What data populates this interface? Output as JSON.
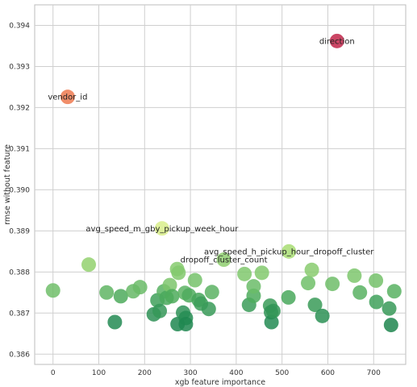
{
  "chart_data": {
    "type": "scatter",
    "title": "",
    "xlabel": "xgb feature importance",
    "ylabel": "rmse without feature",
    "xlim": [
      -40,
      770
    ],
    "ylim": [
      0.38575,
      0.3945
    ],
    "xticks": [
      0,
      100,
      200,
      300,
      400,
      500,
      600,
      700
    ],
    "yticks": [
      0.386,
      0.387,
      0.388,
      0.389,
      0.39,
      0.391,
      0.392,
      0.393,
      0.394
    ],
    "ytick_labels": [
      "0.386",
      "0.387",
      "0.388",
      "0.389",
      "0.390",
      "0.391",
      "0.392",
      "0.393",
      "0.394"
    ],
    "grid": true,
    "colormap": "RdYlGn (reversed: high rmse red, low rmse green)",
    "points": [
      {
        "x": 620,
        "y": 0.39362,
        "color": "#c2264a",
        "label": "direction"
      },
      {
        "x": 32,
        "y": 0.39226,
        "color": "#ef7a50",
        "label": "vendor_id"
      },
      {
        "x": 238,
        "y": 0.38906,
        "color": "#d9ef8b",
        "label": "avg_speed_m_gby_pickup_week_hour"
      },
      {
        "x": 515,
        "y": 0.3885,
        "color": "#a8dd73",
        "label": "avg_speed_h_pickup_hour_dropoff_cluster"
      },
      {
        "x": 373,
        "y": 0.3883,
        "color": "#8fcf70",
        "label": "dropoff_cluster_count"
      },
      {
        "x": 0,
        "y": 0.38755,
        "color": "#70be6a"
      },
      {
        "x": 78,
        "y": 0.38818,
        "color": "#93d16e"
      },
      {
        "x": 117,
        "y": 0.3875,
        "color": "#60b564"
      },
      {
        "x": 135,
        "y": 0.38678,
        "color": "#238b53"
      },
      {
        "x": 148,
        "y": 0.38741,
        "color": "#4eaa5c"
      },
      {
        "x": 175,
        "y": 0.38753,
        "color": "#66b866"
      },
      {
        "x": 190,
        "y": 0.38763,
        "color": "#6abb67"
      },
      {
        "x": 220,
        "y": 0.38697,
        "color": "#2e9156"
      },
      {
        "x": 228,
        "y": 0.38731,
        "color": "#3fa05a"
      },
      {
        "x": 233,
        "y": 0.38705,
        "color": "#359858"
      },
      {
        "x": 242,
        "y": 0.38753,
        "color": "#58b162"
      },
      {
        "x": 248,
        "y": 0.38737,
        "color": "#4aa95d"
      },
      {
        "x": 255,
        "y": 0.38768,
        "color": "#7cc56c"
      },
      {
        "x": 260,
        "y": 0.38741,
        "color": "#4dab5c"
      },
      {
        "x": 271,
        "y": 0.38807,
        "color": "#86cb6e"
      },
      {
        "x": 274,
        "y": 0.38798,
        "color": "#82c96d"
      },
      {
        "x": 272,
        "y": 0.38673,
        "color": "#1f8750"
      },
      {
        "x": 284,
        "y": 0.38701,
        "color": "#2e9257"
      },
      {
        "x": 288,
        "y": 0.38749,
        "color": "#5cb363"
      },
      {
        "x": 290,
        "y": 0.38688,
        "color": "#268d54"
      },
      {
        "x": 290,
        "y": 0.38673,
        "color": "#1f8750"
      },
      {
        "x": 297,
        "y": 0.38743,
        "color": "#4fac5e"
      },
      {
        "x": 310,
        "y": 0.3878,
        "color": "#76c26b"
      },
      {
        "x": 318,
        "y": 0.38732,
        "color": "#45a55b"
      },
      {
        "x": 323,
        "y": 0.38723,
        "color": "#3c9d59"
      },
      {
        "x": 340,
        "y": 0.3871,
        "color": "#389a58"
      },
      {
        "x": 347,
        "y": 0.38751,
        "color": "#5bb263"
      },
      {
        "x": 418,
        "y": 0.38795,
        "color": "#80c86d"
      },
      {
        "x": 428,
        "y": 0.3872,
        "color": "#3b9c59"
      },
      {
        "x": 438,
        "y": 0.38742,
        "color": "#4eab5d"
      },
      {
        "x": 438,
        "y": 0.38765,
        "color": "#6bbc68"
      },
      {
        "x": 456,
        "y": 0.38798,
        "color": "#82c96d"
      },
      {
        "x": 474,
        "y": 0.38718,
        "color": "#3a9b58"
      },
      {
        "x": 476,
        "y": 0.38702,
        "color": "#2f9356"
      },
      {
        "x": 477,
        "y": 0.38678,
        "color": "#238b53"
      },
      {
        "x": 481,
        "y": 0.38705,
        "color": "#339757"
      },
      {
        "x": 514,
        "y": 0.38738,
        "color": "#49a85c"
      },
      {
        "x": 557,
        "y": 0.38773,
        "color": "#70bf69"
      },
      {
        "x": 565,
        "y": 0.38805,
        "color": "#88cb6e"
      },
      {
        "x": 572,
        "y": 0.3872,
        "color": "#3a9b58"
      },
      {
        "x": 588,
        "y": 0.38693,
        "color": "#2b9055"
      },
      {
        "x": 610,
        "y": 0.38771,
        "color": "#6ebd68"
      },
      {
        "x": 658,
        "y": 0.38791,
        "color": "#7ec76d"
      },
      {
        "x": 670,
        "y": 0.3875,
        "color": "#58b162"
      },
      {
        "x": 705,
        "y": 0.38779,
        "color": "#74c16a"
      },
      {
        "x": 706,
        "y": 0.38727,
        "color": "#40a15a"
      },
      {
        "x": 734,
        "y": 0.38711,
        "color": "#379958"
      },
      {
        "x": 738,
        "y": 0.38671,
        "color": "#1e864f"
      },
      {
        "x": 745,
        "y": 0.38753,
        "color": "#58b162"
      }
    ]
  }
}
